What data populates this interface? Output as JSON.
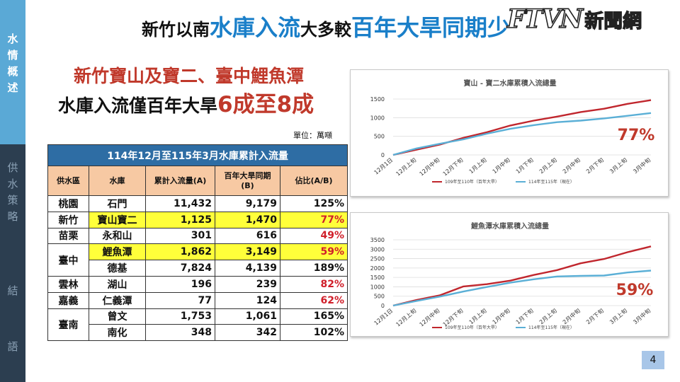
{
  "sidebar": {
    "sections": [
      {
        "label": "水情概述",
        "active": true
      },
      {
        "label": "供水策略",
        "active": false
      },
      {
        "label": "結語",
        "active": false
      }
    ]
  },
  "headline": {
    "part1": "新竹以南",
    "part2": "水庫入流",
    "part3": "大多較",
    "part4": "百年大旱同期少"
  },
  "logo": {
    "mark": "FTVN",
    "text": "新聞網"
  },
  "subheading": {
    "line1": "新竹寶山及寶二、臺中鯉魚潭",
    "line2_prefix": "水庫入流僅百年大旱",
    "line2_highlight": "6成至8成"
  },
  "table": {
    "unit": "單位：萬噸",
    "title": "114年12月至115年3月水庫累計入流量",
    "headers": [
      "供水區",
      "水庫",
      "累計入流量(A)",
      "百年大旱同期(B)",
      "佔比(A/B)"
    ],
    "rows": [
      {
        "region": "桃園",
        "reservoir": "石門",
        "a": "11,432",
        "b": "9,179",
        "ratio": "125%",
        "red": false,
        "highlight": false
      },
      {
        "region": "新竹",
        "reservoir": "寶山寶二",
        "a": "1,125",
        "b": "1,470",
        "ratio": "77%",
        "red": true,
        "highlight": true
      },
      {
        "region": "苗栗",
        "reservoir": "永和山",
        "a": "301",
        "b": "616",
        "ratio": "49%",
        "red": true,
        "highlight": false
      },
      {
        "region": "臺中",
        "reservoir": "鯉魚潭",
        "a": "1,862",
        "b": "3,149",
        "ratio": "59%",
        "red": true,
        "highlight": true
      },
      {
        "region": "",
        "reservoir": "德基",
        "a": "7,824",
        "b": "4,139",
        "ratio": "189%",
        "red": false,
        "highlight": false
      },
      {
        "region": "雲林",
        "reservoir": "湖山",
        "a": "196",
        "b": "239",
        "ratio": "82%",
        "red": true,
        "highlight": false
      },
      {
        "region": "嘉義",
        "reservoir": "仁義潭",
        "a": "77",
        "b": "124",
        "ratio": "62%",
        "red": true,
        "highlight": false
      },
      {
        "region": "臺南",
        "reservoir": "曾文",
        "a": "1,753",
        "b": "1,061",
        "ratio": "165%",
        "red": false,
        "highlight": false
      },
      {
        "region": "",
        "reservoir": "南化",
        "a": "348",
        "b": "342",
        "ratio": "102%",
        "red": false,
        "highlight": false
      }
    ]
  },
  "chart_data": [
    {
      "type": "line",
      "title": "寶山 - 寶二水庫累積入流總量",
      "categories": [
        "12月1日",
        "12月上旬",
        "12月中旬",
        "12月下旬",
        "1月上旬",
        "1月中旬",
        "1月下旬",
        "2月上旬",
        "2月中旬",
        "2月下旬",
        "3月上旬",
        "3月中旬"
      ],
      "ylim": [
        0,
        1500
      ],
      "yticks": [
        0,
        500,
        1000,
        1500
      ],
      "grid": true,
      "legend": "bottom",
      "annotation": "77%",
      "series": [
        {
          "name": "109年至110年（百年大旱）",
          "color": "#c0262d",
          "values": [
            0,
            140,
            280,
            460,
            610,
            790,
            920,
            1030,
            1150,
            1240,
            1370,
            1470
          ]
        },
        {
          "name": "114年至115年（現在）",
          "color": "#5aafd6",
          "values": [
            0,
            175,
            300,
            420,
            570,
            700,
            800,
            880,
            920,
            980,
            1050,
            1125
          ]
        }
      ]
    },
    {
      "type": "line",
      "title": "鯉魚潭水庫累積入流總量",
      "categories": [
        "12月1日",
        "12月上旬",
        "12月中旬",
        "12月下旬",
        "1月上旬",
        "1月中旬",
        "1月下旬",
        "2月上旬",
        "2月中旬",
        "2月下旬",
        "3月上旬",
        "3月中旬"
      ],
      "ylim": [
        0,
        3500
      ],
      "yticks": [
        0,
        500,
        1000,
        1500,
        2000,
        2500,
        3000,
        3500
      ],
      "grid": true,
      "legend": "bottom",
      "annotation": "59%",
      "series": [
        {
          "name": "109年至110年（百年大旱）",
          "color": "#c0262d",
          "values": [
            0,
            300,
            550,
            1020,
            1140,
            1330,
            1630,
            1890,
            2250,
            2480,
            2840,
            3149
          ]
        },
        {
          "name": "114年至115年（現在）",
          "color": "#5aafd6",
          "values": [
            0,
            250,
            480,
            750,
            990,
            1220,
            1400,
            1550,
            1580,
            1600,
            1760,
            1862
          ]
        }
      ]
    }
  ],
  "page_number": "4"
}
